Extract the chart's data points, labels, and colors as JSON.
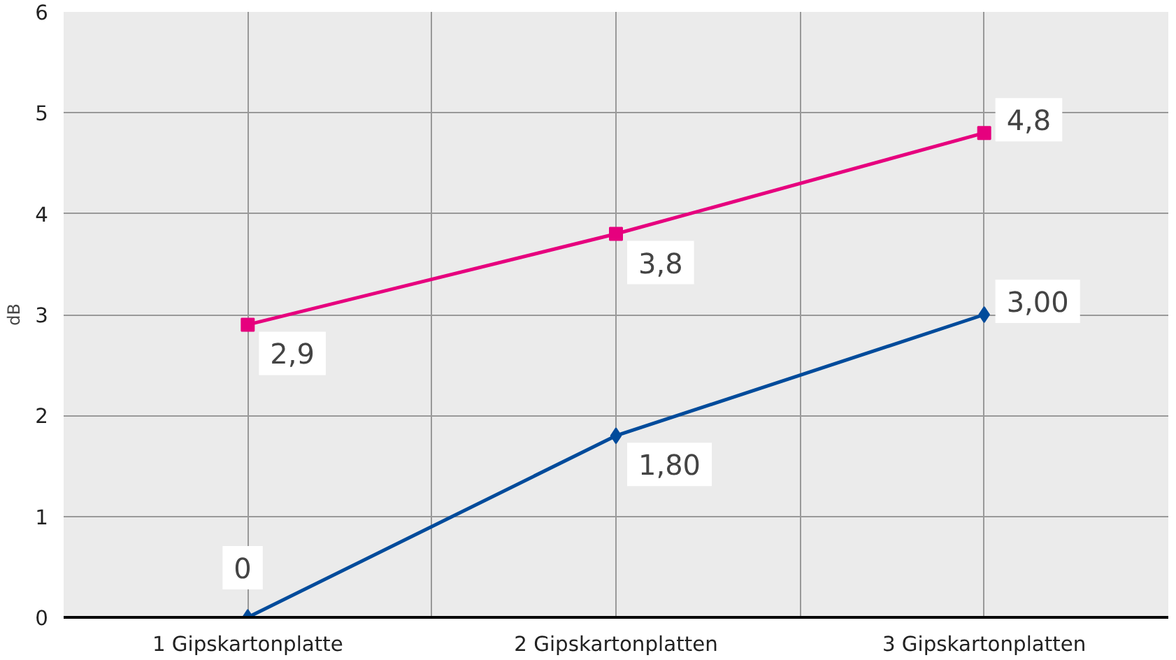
{
  "chart_data": {
    "type": "line",
    "ylabel": "dB",
    "categories": [
      "1 Gipskartonplatte",
      "2 Gipskartonplatten",
      "3 Gipskartonplatten"
    ],
    "series": [
      {
        "color": "#e6007e",
        "values": [
          2.9,
          3.8,
          4.8
        ],
        "marker": "square",
        "value_labels": [
          "2,9",
          "3,8",
          "4,8"
        ]
      },
      {
        "color": "#004b9b",
        "values": [
          0,
          1.8,
          3.0
        ],
        "marker": "diamond",
        "value_labels": [
          "0",
          "1,80",
          "3,00"
        ]
      }
    ],
    "ylim": [
      0,
      6
    ],
    "yticks": [
      0,
      1,
      2,
      3,
      4,
      5,
      6
    ],
    "grid": true,
    "line_style": "solid"
  }
}
